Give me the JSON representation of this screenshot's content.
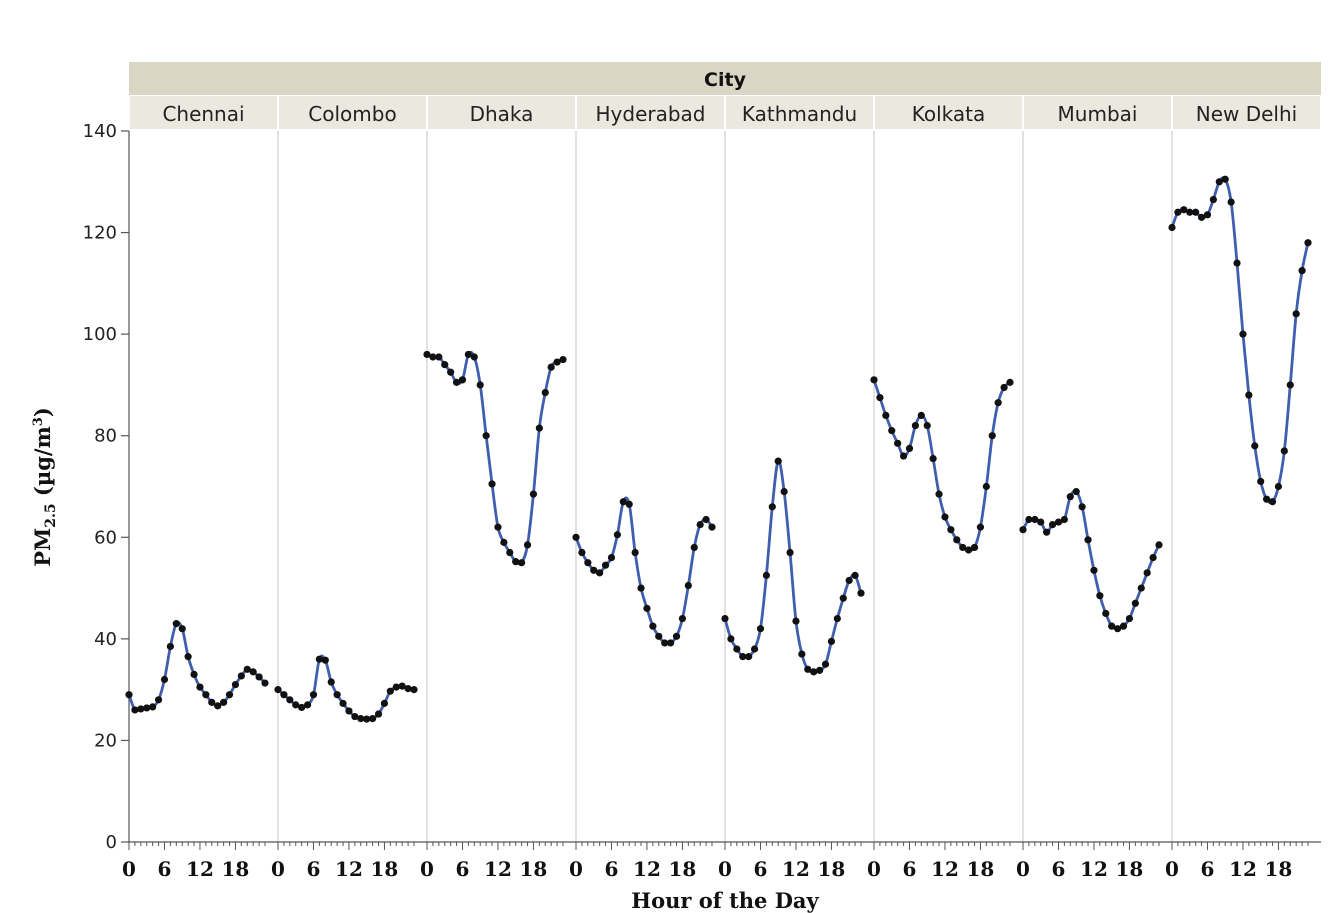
{
  "chart_data": {
    "type": "line",
    "facet_header": "City",
    "xlabel": "Hour of the Day",
    "ylabel_main": "PM",
    "ylabel_sub": "2.5",
    "ylabel_unit": " (µg/m",
    "ylabel_sup": "3",
    "ylabel_close": ")",
    "ylim": [
      0,
      140
    ],
    "y_ticks": [
      "0",
      "20",
      "40",
      "60",
      "80",
      "100",
      "120",
      "140"
    ],
    "x_ticks": [
      "0",
      "6",
      "12",
      "18"
    ],
    "x": [
      0,
      1,
      2,
      3,
      4,
      5,
      6,
      7,
      8,
      9,
      10,
      11,
      12,
      13,
      14,
      15,
      16,
      17,
      18,
      19,
      20,
      21,
      22,
      23
    ],
    "grid": false,
    "line_color": "#3f5fae",
    "marker_color": "#111111",
    "series": [
      {
        "name": "Chennai",
        "values": [
          29,
          26,
          26.2,
          26.4,
          26.6,
          28,
          32,
          38.5,
          43,
          42,
          36.5,
          33,
          30.5,
          29,
          27.5,
          26.8,
          27.5,
          29,
          31,
          32.7,
          34,
          33.5,
          32.5,
          31.3
        ]
      },
      {
        "name": "Colombo",
        "values": [
          30,
          29,
          28,
          27,
          26.5,
          27,
          29,
          36,
          35.8,
          31.5,
          29,
          27.3,
          25.8,
          24.7,
          24.3,
          24.2,
          24.3,
          25.2,
          27.3,
          29.7,
          30.5,
          30.7,
          30.2,
          30
        ]
      },
      {
        "name": "Dhaka",
        "values": [
          96,
          95.5,
          95.5,
          94,
          92.5,
          90.5,
          91,
          96,
          95.5,
          90,
          80,
          70.5,
          62,
          59,
          57,
          55.2,
          55,
          58.5,
          68.5,
          81.5,
          88.5,
          93.5,
          94.5,
          95
        ]
      },
      {
        "name": "Hyderabad",
        "values": [
          60,
          57,
          55,
          53.5,
          53,
          54.5,
          56,
          60.5,
          67,
          66.5,
          57,
          50,
          46,
          42.5,
          40.5,
          39.2,
          39.2,
          40.5,
          44,
          50.5,
          58,
          62.5,
          63.5,
          62
        ]
      },
      {
        "name": "Kathmandu",
        "values": [
          44,
          40,
          38,
          36.5,
          36.5,
          38,
          42,
          52.5,
          66,
          75,
          69,
          57,
          43.5,
          37,
          34,
          33.5,
          33.8,
          35,
          39.5,
          44,
          48,
          51.5,
          52.5,
          49
        ]
      },
      {
        "name": "Kolkata",
        "values": [
          91,
          87.5,
          84,
          81,
          78.5,
          76,
          77.5,
          82,
          84,
          82,
          75.5,
          68.5,
          64,
          61.5,
          59.5,
          58,
          57.5,
          58,
          62,
          70,
          80,
          86.5,
          89.5,
          90.5
        ]
      },
      {
        "name": "Mumbai",
        "values": [
          61.5,
          63.5,
          63.5,
          63,
          61,
          62.5,
          63,
          63.5,
          68,
          69,
          66,
          59.5,
          53.5,
          48.5,
          45,
          42.5,
          42,
          42.5,
          44,
          47,
          50,
          53,
          56,
          58.5
        ]
      },
      {
        "name": "New Delhi",
        "values": [
          121,
          124,
          124.5,
          124,
          124,
          123,
          123.5,
          126.5,
          130,
          130.5,
          126,
          114,
          100,
          88,
          78,
          71,
          67.5,
          67,
          70,
          77,
          90,
          104,
          112.5,
          118
        ]
      }
    ]
  }
}
